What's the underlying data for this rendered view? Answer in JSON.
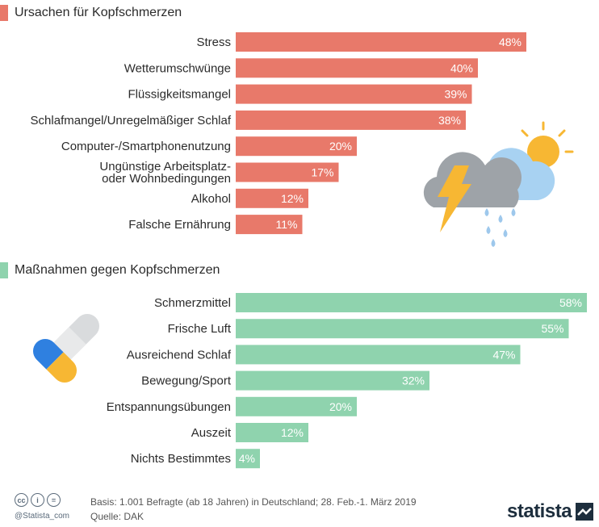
{
  "sections": [
    {
      "title": "Ursachen für Kopfschmerzen",
      "color": "#e8796a"
    },
    {
      "title": "Maßnahmen gegen Kopfschmerzen",
      "color": "#8fd3ae"
    }
  ],
  "chart_data": [
    {
      "type": "bar",
      "orientation": "horizontal",
      "title": "Ursachen für Kopfschmerzen",
      "unit": "%",
      "color": "#e8796a",
      "categories": [
        "Stress",
        "Wetterumschwünge",
        "Flüssigkeitsmangel",
        "Schlafmangel/Unregelmäßiger Schlaf",
        "Computer-/Smartphonenutzung",
        "Ungünstige Arbeitsplatz-\noder Wohnbedingungen",
        "Alkohol",
        "Falsche Ernährung"
      ],
      "values": [
        48,
        40,
        39,
        38,
        20,
        17,
        12,
        11
      ],
      "labels": [
        "48%",
        "40%",
        "39%",
        "38%",
        "20%",
        "17%",
        "12%",
        "11%"
      ]
    },
    {
      "type": "bar",
      "orientation": "horizontal",
      "title": "Maßnahmen gegen Kopfschmerzen",
      "unit": "%",
      "color": "#8fd3ae",
      "categories": [
        "Schmerzmittel",
        "Frische Luft",
        "Ausreichend Schlaf",
        "Bewegung/Sport",
        "Entspannungsübungen",
        "Auszeit",
        "Nichts Bestimmtes"
      ],
      "values": [
        58,
        55,
        47,
        32,
        20,
        12,
        4
      ],
      "labels": [
        "58%",
        "55%",
        "47%",
        "32%",
        "20%",
        "12%",
        "4%"
      ]
    }
  ],
  "footer": {
    "cc_icons": [
      "cc",
      "i",
      "="
    ],
    "credit": "@Statista_com",
    "basis": "Basis: 1.001 Befragte (ab 18 Jahren) in Deutschland; 28. Feb.-1. März 2019",
    "source": "Quelle: DAK",
    "logo": "statista"
  },
  "icons": [
    "weather-storm-icon",
    "pills-icon",
    "statista-logo-icon"
  ]
}
